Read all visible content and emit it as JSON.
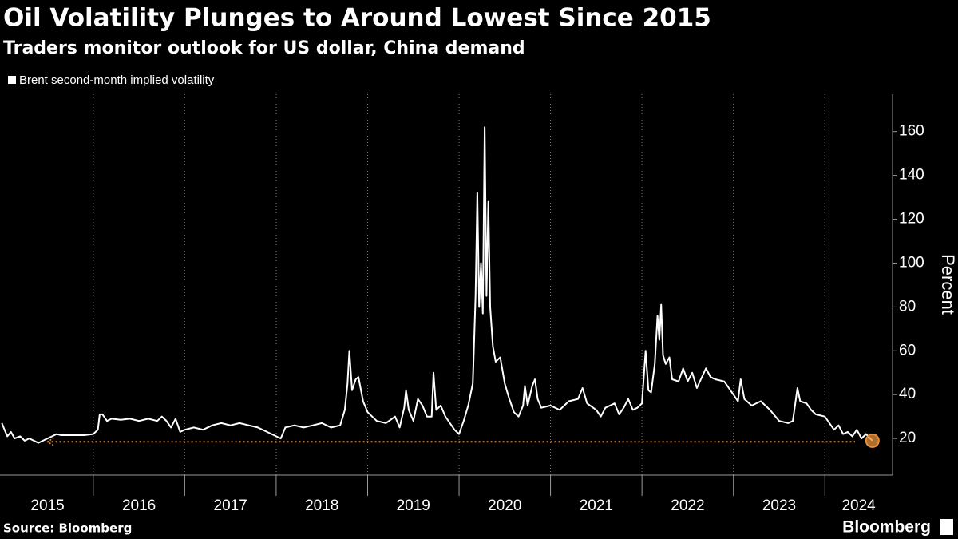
{
  "chart_data": {
    "type": "line",
    "title": "Oil Volatility Plunges to Around Lowest Since 2015",
    "subtitle": "Traders monitor outlook for US dollar, China demand",
    "ylabel": "Percent",
    "source": "Source: Bloomberg",
    "brand": "Bloomberg",
    "series": [
      {
        "name": "Brent second-month implied volatility",
        "color": "#ffffff",
        "x": [
          2015.0,
          2015.03,
          2015.06,
          2015.1,
          2015.14,
          2015.2,
          2015.25,
          2015.3,
          2015.35,
          2015.4,
          2015.45,
          2015.5,
          2015.55,
          2015.6,
          2015.65,
          2015.7,
          2015.8,
          2015.9,
          2016.0,
          2016.05,
          2016.07,
          2016.1,
          2016.15,
          2016.2,
          2016.3,
          2016.4,
          2016.5,
          2016.6,
          2016.7,
          2016.75,
          2016.8,
          2016.85,
          2016.9,
          2016.95,
          2017.0,
          2017.1,
          2017.2,
          2017.3,
          2017.4,
          2017.5,
          2017.6,
          2017.7,
          2017.8,
          2017.9,
          2018.0,
          2018.05,
          2018.1,
          2018.2,
          2018.3,
          2018.4,
          2018.5,
          2018.6,
          2018.7,
          2018.75,
          2018.78,
          2018.8,
          2018.83,
          2018.87,
          2018.9,
          2018.95,
          2019.0,
          2019.1,
          2019.2,
          2019.3,
          2019.35,
          2019.4,
          2019.42,
          2019.45,
          2019.5,
          2019.55,
          2019.6,
          2019.65,
          2019.7,
          2019.72,
          2019.75,
          2019.8,
          2019.85,
          2019.9,
          2019.95,
          2020.0,
          2020.05,
          2020.1,
          2020.15,
          2020.18,
          2020.2,
          2020.22,
          2020.24,
          2020.26,
          2020.28,
          2020.3,
          2020.32,
          2020.34,
          2020.37,
          2020.4,
          2020.45,
          2020.5,
          2020.55,
          2020.6,
          2020.65,
          2020.7,
          2020.72,
          2020.75,
          2020.8,
          2020.83,
          2020.86,
          2020.9,
          2021.0,
          2021.1,
          2021.2,
          2021.3,
          2021.35,
          2021.4,
          2021.5,
          2021.55,
          2021.6,
          2021.7,
          2021.75,
          2021.8,
          2021.85,
          2021.9,
          2021.95,
          2022.0,
          2022.04,
          2022.07,
          2022.1,
          2022.14,
          2022.17,
          2022.19,
          2022.21,
          2022.23,
          2022.26,
          2022.3,
          2022.33,
          2022.4,
          2022.45,
          2022.5,
          2022.55,
          2022.6,
          2022.7,
          2022.75,
          2022.8,
          2022.9,
          2023.0,
          2023.05,
          2023.08,
          2023.12,
          2023.2,
          2023.3,
          2023.4,
          2023.5,
          2023.6,
          2023.65,
          2023.7,
          2023.73,
          2023.8,
          2023.85,
          2023.9,
          2024.0,
          2024.05,
          2024.1,
          2024.15,
          2024.2,
          2024.25,
          2024.3,
          2024.35,
          2024.4,
          2024.45,
          2024.52
        ],
        "values": [
          27,
          24,
          21,
          23,
          20,
          21,
          19,
          20,
          19,
          18,
          19,
          20,
          21,
          22,
          21.5,
          21.5,
          21.5,
          21.5,
          22,
          24,
          31,
          31,
          28,
          29,
          28.5,
          29,
          28,
          29,
          28,
          30,
          28,
          25,
          29,
          23,
          24,
          25,
          24,
          26,
          27,
          26,
          27,
          26,
          25,
          23,
          21,
          20,
          25,
          26,
          25,
          26,
          27,
          25,
          26,
          33,
          45,
          60,
          42,
          47,
          48,
          37,
          32,
          28,
          27,
          30,
          25,
          34,
          42,
          33,
          28,
          38,
          35,
          30,
          30,
          50,
          33,
          35,
          30,
          27,
          24,
          22,
          28,
          35,
          45,
          85,
          132,
          80,
          100,
          77,
          162,
          85,
          128,
          80,
          62,
          55,
          57,
          45,
          38,
          32,
          30,
          35,
          44,
          35,
          44,
          47,
          38,
          34,
          35,
          33,
          37,
          38,
          43,
          36,
          33,
          30,
          34,
          36,
          31,
          34,
          38,
          33,
          34,
          36,
          60,
          42,
          41,
          54,
          76,
          65,
          81,
          58,
          54,
          57,
          47,
          46,
          52,
          46,
          50,
          43,
          52,
          48,
          47,
          46,
          40,
          37,
          47,
          38,
          35,
          37,
          33,
          28,
          27,
          28,
          43,
          37,
          36,
          33,
          31,
          30,
          27,
          24,
          26,
          22,
          23,
          21,
          24,
          20,
          22,
          19
        ]
      }
    ],
    "reference_line": {
      "value": 18.5,
      "x": [
        2015.5,
        2024.33
      ],
      "color": "#e8913a"
    },
    "highlight_last": true,
    "xlim": [
      2014.98,
      2024.74
    ],
    "xticks": [
      {
        "value": 2015.5,
        "label": "2015"
      },
      {
        "value": 2016.5,
        "label": "2016"
      },
      {
        "value": 2017.5,
        "label": "2017"
      },
      {
        "value": 2018.5,
        "label": "2018"
      },
      {
        "value": 2019.5,
        "label": "2019"
      },
      {
        "value": 2020.5,
        "label": "2020"
      },
      {
        "value": 2021.5,
        "label": "2021"
      },
      {
        "value": 2022.5,
        "label": "2022"
      },
      {
        "value": 2023.5,
        "label": "2023"
      },
      {
        "value": 2024.37,
        "label": "2024"
      }
    ],
    "xgrid": [
      2016,
      2017,
      2018,
      2019,
      2020,
      2021,
      2022,
      2023,
      2024
    ],
    "ylim": [
      3.3,
      177
    ],
    "yticks": [
      20,
      40,
      60,
      80,
      100,
      120,
      140,
      160
    ]
  }
}
